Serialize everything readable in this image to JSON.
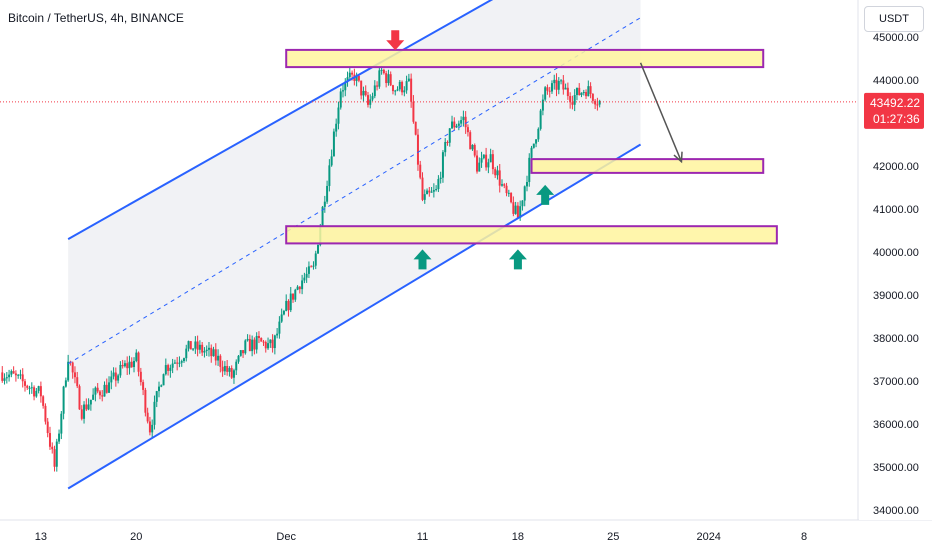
{
  "title": "Bitcoin / TetherUS, 4h, BINANCE",
  "currency_button": "USDT",
  "last_price": "43492.22",
  "countdown": "01:27:36",
  "colors": {
    "up": "#089981",
    "down": "#f23645",
    "channel": "#2962ff",
    "zone_fill": "#fff59d",
    "zone_border": "#9c27b0",
    "price_line": "#f23645",
    "arrow_down": "#f23645",
    "arrow_up": "#089981",
    "projection": "#555555"
  },
  "chart_data": {
    "type": "candlestick",
    "symbol": "Bitcoin / TetherUS",
    "interval": "4h",
    "exchange": "BINANCE",
    "x_tick_labels": [
      "13",
      "20",
      "Dec",
      "11",
      "18",
      "25",
      "2024",
      "8"
    ],
    "x_tick_dates": [
      "2023-11-13",
      "2023-11-20",
      "2023-12-01",
      "2023-12-11",
      "2023-12-18",
      "2023-12-25",
      "2024-01-01",
      "2024-01-08"
    ],
    "y_tick_labels": [
      "45000.00",
      "44000.00",
      "43000.00",
      "42000.00",
      "41000.00",
      "40000.00",
      "39000.00",
      "38000.00",
      "37000.00",
      "36000.00",
      "35000.00",
      "34000.00"
    ],
    "ylim": [
      33850,
      45300
    ],
    "xlim": [
      "2023-11-10",
      "2024-01-11"
    ],
    "last_price": 43492.22,
    "price_path": [
      [
        "2023-11-10",
        37200
      ],
      [
        "2023-11-11",
        37100
      ],
      [
        "2023-11-12",
        36900
      ],
      [
        "2023-11-13",
        36700
      ],
      [
        "2023-11-14",
        35000
      ],
      [
        "2023-11-15",
        37600
      ],
      [
        "2023-11-16",
        36300
      ],
      [
        "2023-11-17",
        36700
      ],
      [
        "2023-11-18",
        36900
      ],
      [
        "2023-11-19",
        37300
      ],
      [
        "2023-11-20",
        37500
      ],
      [
        "2023-11-21",
        35900
      ],
      [
        "2023-11-22",
        37300
      ],
      [
        "2023-11-23",
        37500
      ],
      [
        "2023-11-24",
        37800
      ],
      [
        "2023-11-25",
        37700
      ],
      [
        "2023-11-26",
        37500
      ],
      [
        "2023-11-27",
        37100
      ],
      [
        "2023-11-28",
        37800
      ],
      [
        "2023-11-29",
        37900
      ],
      [
        "2023-11-30",
        37800
      ],
      [
        "2023-12-01",
        38700
      ],
      [
        "2023-12-02",
        39300
      ],
      [
        "2023-12-03",
        39600
      ],
      [
        "2023-12-04",
        41700
      ],
      [
        "2023-12-05",
        43800
      ],
      [
        "2023-12-06",
        44100
      ],
      [
        "2023-12-07",
        43400
      ],
      [
        "2023-12-08",
        44200
      ],
      [
        "2023-12-09",
        43800
      ],
      [
        "2023-12-10",
        43900
      ],
      [
        "2023-12-11",
        41200
      ],
      [
        "2023-12-12",
        41400
      ],
      [
        "2023-12-13",
        42900
      ],
      [
        "2023-12-14",
        43100
      ],
      [
        "2023-12-15",
        42000
      ],
      [
        "2023-12-16",
        42200
      ],
      [
        "2023-12-17",
        41400
      ],
      [
        "2023-12-18",
        40800
      ],
      [
        "2023-12-19",
        42300
      ],
      [
        "2023-12-20",
        43700
      ],
      [
        "2023-12-21",
        43900
      ],
      [
        "2023-12-22",
        43600
      ],
      [
        "2023-12-23",
        43800
      ],
      [
        "2023-12-24",
        43492.22
      ]
    ],
    "channel": {
      "upper": [
        [
          "2023-11-15",
          40300
        ],
        [
          "2023-12-09",
          44600
        ]
      ],
      "lower": [
        [
          "2023-11-15",
          34500
        ],
        [
          "2023-12-27",
          42500
        ]
      ],
      "mid": [
        [
          "2023-11-15",
          37400
        ],
        [
          "2023-12-27",
          45450
        ]
      ]
    },
    "zones": [
      {
        "from": "2023-12-01",
        "to": "2024-01-05",
        "low": 44300,
        "high": 44700
      },
      {
        "from": "2023-12-19",
        "to": "2024-01-05",
        "low": 41840,
        "high": 42160
      },
      {
        "from": "2023-12-01",
        "to": "2024-01-06",
        "low": 40200,
        "high": 40600
      }
    ],
    "markers": [
      {
        "type": "arrow-down",
        "date": "2023-12-09",
        "price": 44600
      },
      {
        "type": "arrow-up",
        "date": "2023-12-11",
        "price": 40200
      },
      {
        "type": "arrow-up",
        "date": "2023-12-18",
        "price": 40200
      },
      {
        "type": "arrow-up",
        "date": "2023-12-20",
        "price": 41700
      }
    ],
    "projection": {
      "from": [
        "2023-12-27",
        44400
      ],
      "to": [
        "2023-12-30",
        42100
      ]
    }
  }
}
